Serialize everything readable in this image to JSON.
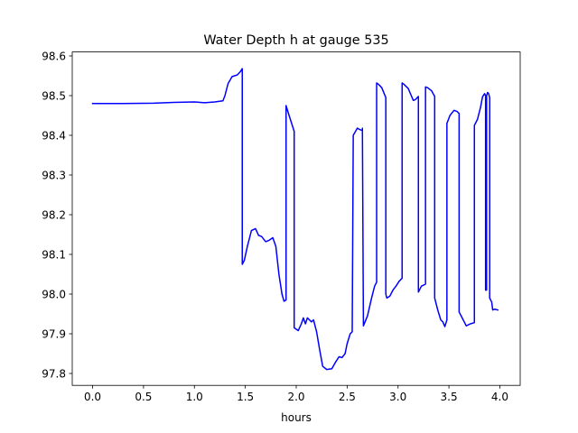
{
  "chart_data": {
    "type": "line",
    "title": "Water Depth h at gauge 535",
    "xlabel": "hours",
    "ylabel": "",
    "xlim": [
      -0.2,
      4.2
    ],
    "ylim": [
      97.77,
      98.61
    ],
    "grid": false,
    "xticks": [
      0.0,
      0.5,
      1.0,
      1.5,
      2.0,
      2.5,
      3.0,
      3.5,
      4.0
    ],
    "xtick_labels": [
      "0.0",
      "0.5",
      "1.0",
      "1.5",
      "2.0",
      "2.5",
      "3.0",
      "3.5",
      "4.0"
    ],
    "yticks": [
      97.8,
      97.9,
      98.0,
      98.1,
      98.2,
      98.3,
      98.4,
      98.5,
      98.6
    ],
    "ytick_labels": [
      "97.8",
      "97.9",
      "98.0",
      "98.1",
      "98.2",
      "98.3",
      "98.4",
      "98.5",
      "98.6"
    ],
    "series": [
      {
        "color": "#0000ff",
        "x": [
          0.0,
          0.3,
          0.6,
          0.8,
          1.0,
          1.1,
          1.2,
          1.28,
          1.3,
          1.33,
          1.37,
          1.42,
          1.45,
          1.47,
          1.47,
          1.49,
          1.52,
          1.56,
          1.6,
          1.63,
          1.66,
          1.7,
          1.73,
          1.77,
          1.8,
          1.83,
          1.86,
          1.88,
          1.9,
          1.9,
          1.93,
          1.98,
          1.98,
          2.02,
          2.05,
          2.07,
          2.09,
          2.11,
          2.13,
          2.15,
          2.17,
          2.2,
          2.23,
          2.26,
          2.3,
          2.35,
          2.39,
          2.42,
          2.45,
          2.48,
          2.5,
          2.53,
          2.55,
          2.56,
          2.56,
          2.6,
          2.62,
          2.65,
          2.65,
          2.66,
          2.7,
          2.74,
          2.77,
          2.79,
          2.79,
          2.81,
          2.84,
          2.88,
          2.88,
          2.89,
          2.92,
          2.95,
          2.98,
          3.01,
          3.04,
          3.04,
          3.06,
          3.1,
          3.13,
          3.15,
          3.17,
          3.2,
          3.2,
          3.23,
          3.27,
          3.27,
          3.29,
          3.33,
          3.36,
          3.36,
          3.39,
          3.42,
          3.44,
          3.46,
          3.48,
          3.48,
          3.51,
          3.55,
          3.58,
          3.6,
          3.6,
          3.63,
          3.67,
          3.71,
          3.75,
          3.75,
          3.78,
          3.81,
          3.83,
          3.85,
          3.86,
          3.86,
          3.87,
          3.87,
          3.88,
          3.89,
          3.9,
          3.9,
          3.92,
          3.93,
          3.95,
          3.98
        ],
        "y": [
          98.48,
          98.48,
          98.481,
          98.483,
          98.484,
          98.482,
          98.484,
          98.487,
          98.5,
          98.53,
          98.548,
          98.552,
          98.56,
          98.568,
          98.075,
          98.085,
          98.12,
          98.16,
          98.165,
          98.148,
          98.145,
          98.132,
          98.135,
          98.142,
          98.12,
          98.05,
          98.0,
          97.982,
          97.985,
          98.475,
          98.45,
          98.41,
          97.915,
          97.908,
          97.925,
          97.94,
          97.925,
          97.94,
          97.935,
          97.93,
          97.935,
          97.905,
          97.86,
          97.818,
          97.81,
          97.812,
          97.83,
          97.842,
          97.84,
          97.85,
          97.875,
          97.9,
          97.905,
          98.395,
          98.4,
          98.418,
          98.415,
          98.412,
          98.418,
          97.92,
          97.945,
          97.99,
          98.02,
          98.03,
          98.532,
          98.528,
          98.52,
          98.495,
          98.0,
          97.99,
          97.995,
          98.01,
          98.02,
          98.032,
          98.04,
          98.532,
          98.528,
          98.518,
          98.5,
          98.488,
          98.49,
          98.498,
          98.005,
          98.02,
          98.025,
          98.522,
          98.52,
          98.512,
          98.498,
          97.99,
          97.96,
          97.935,
          97.93,
          97.918,
          97.935,
          98.43,
          98.45,
          98.463,
          98.46,
          98.455,
          97.955,
          97.94,
          97.92,
          97.925,
          97.928,
          98.425,
          98.44,
          98.47,
          98.497,
          98.505,
          98.5,
          98.01,
          98.01,
          98.5,
          98.508,
          98.505,
          98.495,
          97.99,
          97.98,
          97.96,
          97.962,
          97.96
        ]
      }
    ]
  }
}
